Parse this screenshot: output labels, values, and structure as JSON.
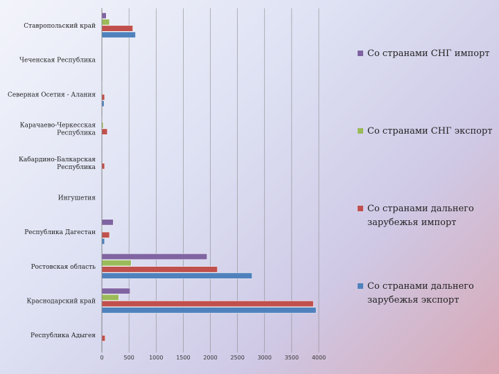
{
  "chart_data": {
    "type": "bar",
    "orientation": "horizontal",
    "categories": [
      "Ставропольский край",
      "Чеченская Республика",
      "Северная Осетия - Алания",
      "Карачаево-Черкесская Республика",
      "Кабардино-Балкарская Республика",
      "Ингушетия",
      "Республика Дагестан",
      "Ростовская область",
      "Краснодарский край",
      "Республика Адыгея"
    ],
    "series": [
      {
        "name": "Со странами СНГ импорт",
        "color": "#8064a2",
        "values": [
          80,
          0,
          5,
          10,
          0,
          0,
          210,
          1940,
          520,
          0
        ]
      },
      {
        "name": "Со странами СНГ экспорт",
        "color": "#9bbb59",
        "values": [
          140,
          0,
          5,
          25,
          0,
          0,
          10,
          540,
          310,
          0
        ]
      },
      {
        "name": "Со странами дальнего зарубежья импорт",
        "color": "#c0504d",
        "values": [
          570,
          0,
          50,
          100,
          50,
          0,
          140,
          2130,
          3900,
          60
        ]
      },
      {
        "name": "Со странами дальнего зарубежья экспорт",
        "color": "#4f81bd",
        "values": [
          620,
          0,
          40,
          0,
          0,
          0,
          50,
          2770,
          3950,
          0
        ]
      }
    ],
    "x_ticks": [
      "0",
      "500",
      "1000",
      "1500",
      "2000",
      "2500",
      "3000",
      "3500",
      "4000"
    ],
    "xlim": [
      0,
      4000
    ],
    "grid": true,
    "legend_position": "right"
  }
}
